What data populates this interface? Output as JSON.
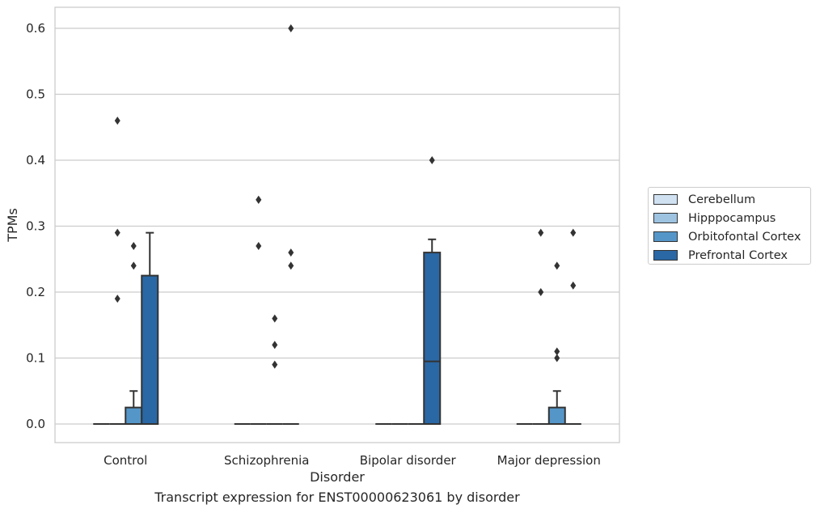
{
  "chart_data": {
    "type": "box",
    "title": "",
    "caption": "Transcript expression for ENST00000623061 by disorder",
    "xlabel": "Disorder",
    "ylabel": "TPMs",
    "categories": [
      "Control",
      "Schizophrenia",
      "Bipolar disorder",
      "Major depression"
    ],
    "ylim": [
      -0.03,
      0.63
    ],
    "yticks": [
      "0.0",
      "0.1",
      "0.2",
      "0.3",
      "0.4",
      "0.5",
      "0.6"
    ],
    "grid": true,
    "legend_position": "right",
    "series": [
      {
        "name": "Cerebellum",
        "color": "#d0e1f2",
        "boxes": [
          {
            "q1": 0,
            "median": 0,
            "q3": 0,
            "whisker_low": 0,
            "whisker_high": 0,
            "outliers": []
          },
          {
            "q1": 0,
            "median": 0,
            "q3": 0,
            "whisker_low": 0,
            "whisker_high": 0,
            "outliers": []
          },
          {
            "q1": 0,
            "median": 0,
            "q3": 0,
            "whisker_low": 0,
            "whisker_high": 0,
            "outliers": []
          },
          {
            "q1": 0,
            "median": 0,
            "q3": 0,
            "whisker_low": 0,
            "whisker_high": 0,
            "outliers": []
          }
        ]
      },
      {
        "name": "Hipppocampus",
        "color": "#9dc3e1",
        "boxes": [
          {
            "q1": 0,
            "median": 0,
            "q3": 0,
            "whisker_low": 0,
            "whisker_high": 0,
            "outliers": [
              0.46,
              0.29,
              0.19
            ]
          },
          {
            "q1": 0,
            "median": 0,
            "q3": 0,
            "whisker_low": 0,
            "whisker_high": 0,
            "outliers": [
              0.34,
              0.34,
              0.27
            ]
          },
          {
            "q1": 0,
            "median": 0,
            "q3": 0,
            "whisker_low": 0,
            "whisker_high": 0,
            "outliers": []
          },
          {
            "q1": 0,
            "median": 0,
            "q3": 0,
            "whisker_low": 0,
            "whisker_high": 0,
            "outliers": [
              0.2,
              0.29
            ]
          }
        ]
      },
      {
        "name": "Orbitofontal Cortex",
        "color": "#5596c8",
        "boxes": [
          {
            "q1": 0,
            "median": 0,
            "q3": 0.025,
            "whisker_low": 0,
            "whisker_high": 0.05,
            "outliers": [
              0.27,
              0.24
            ]
          },
          {
            "q1": 0,
            "median": 0,
            "q3": 0,
            "whisker_low": 0,
            "whisker_high": 0,
            "outliers": [
              0.16,
              0.12,
              0.09
            ]
          },
          {
            "q1": 0,
            "median": 0,
            "q3": 0,
            "whisker_low": 0,
            "whisker_high": 0,
            "outliers": []
          },
          {
            "q1": 0,
            "median": 0,
            "q3": 0.025,
            "whisker_low": 0,
            "whisker_high": 0.05,
            "outliers": [
              0.24,
              0.11,
              0.1
            ]
          }
        ]
      },
      {
        "name": "Prefrontal Cortex",
        "color": "#2a67a5",
        "boxes": [
          {
            "q1": 0,
            "median": 0,
            "q3": 0.225,
            "whisker_low": 0,
            "whisker_high": 0.29,
            "outliers": []
          },
          {
            "q1": 0,
            "median": 0,
            "q3": 0,
            "whisker_low": 0,
            "whisker_high": 0,
            "outliers": [
              0.6,
              0.26,
              0.24
            ]
          },
          {
            "q1": 0,
            "median": 0.095,
            "q3": 0.26,
            "whisker_low": 0,
            "whisker_high": 0.28,
            "outliers": [
              0.4
            ]
          },
          {
            "q1": 0,
            "median": 0,
            "q3": 0,
            "whisker_low": 0,
            "whisker_high": 0,
            "outliers": [
              0.29,
              0.21
            ]
          }
        ]
      }
    ]
  }
}
